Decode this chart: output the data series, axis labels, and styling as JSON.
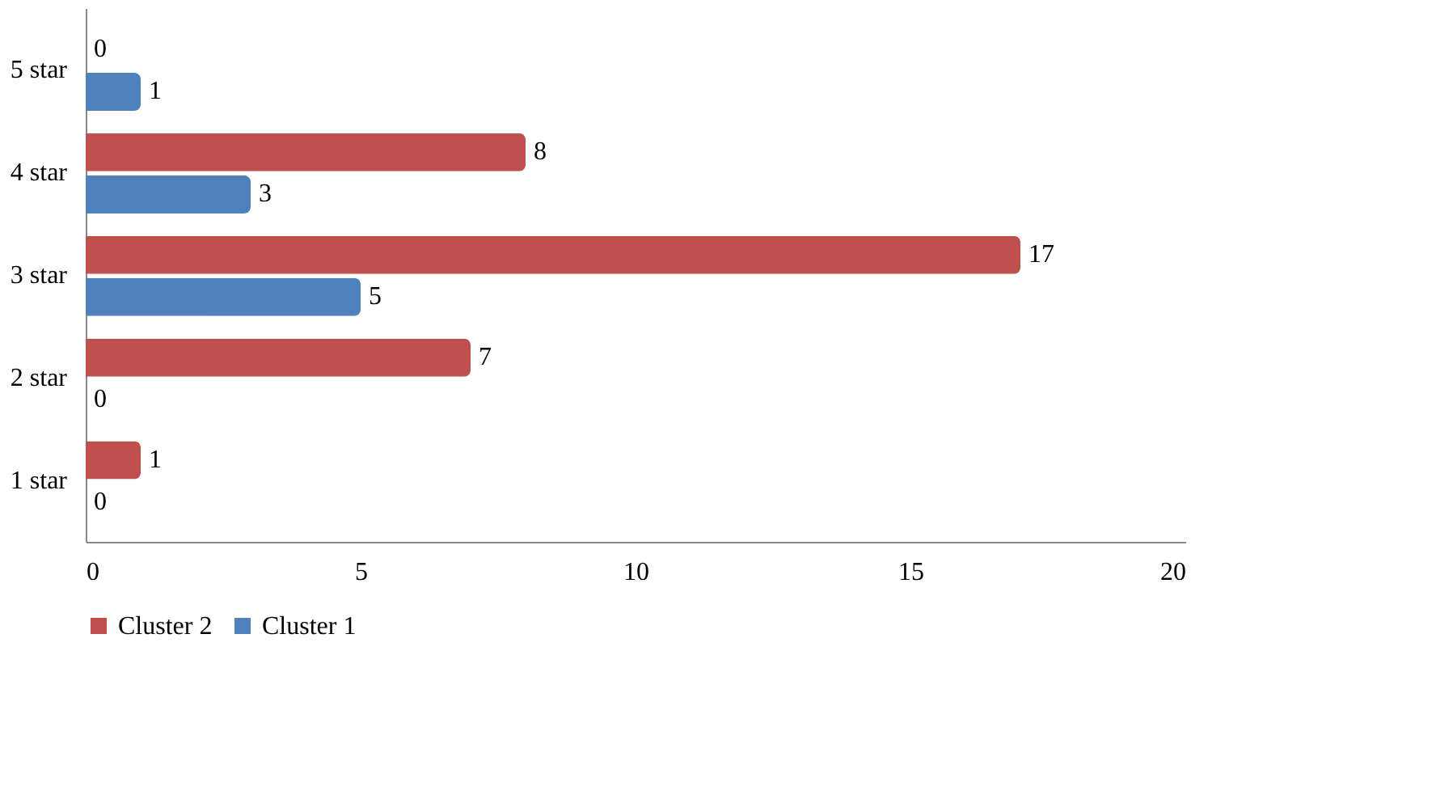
{
  "chart_data": {
    "type": "bar",
    "orientation": "horizontal",
    "categories": [
      "5 star",
      "4 star",
      "3 star",
      "2 star",
      "1 star"
    ],
    "series": [
      {
        "name": "Cluster 2",
        "color": "#c0504d",
        "values": [
          0,
          8,
          17,
          7,
          1
        ]
      },
      {
        "name": "Cluster 1",
        "color": "#4f81bd",
        "values": [
          1,
          3,
          5,
          0,
          0
        ]
      }
    ],
    "xlim": [
      0,
      20
    ],
    "xticks": [
      0,
      5,
      10,
      15,
      20
    ],
    "data_labels": true,
    "legend": "bottom",
    "grid": false
  }
}
